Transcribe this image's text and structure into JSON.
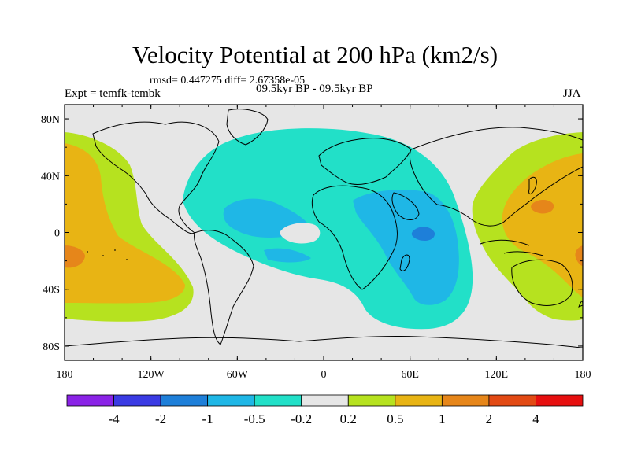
{
  "title": "Velocity Potential at 200 hPa (km2/s)",
  "stats": "rmsd= 0.447275 diff= 2.67358e-05",
  "left_string": "Expt = temfk-tembk",
  "center_string": "09.5kyr BP - 09.5kyr BP",
  "right_string": "JJA",
  "x_ticks": [
    "180",
    "120W",
    "60W",
    "0",
    "60E",
    "120E",
    "180"
  ],
  "y_ticks": [
    "80N",
    "40N",
    "0",
    "40S",
    "80S"
  ],
  "colorbar": {
    "labels": [
      "-4",
      "-2",
      "-1",
      "-0.5",
      "-0.2",
      "0.2",
      "0.5",
      "1",
      "2",
      "4"
    ],
    "colors": [
      "#8a23e6",
      "#3a3be3",
      "#1e7fd9",
      "#1fb7e6",
      "#22e0c8",
      "#e6e6e6",
      "#b6e21f",
      "#e8b414",
      "#e6861a",
      "#e24a14",
      "#e60f0f"
    ]
  },
  "field_colors": {
    "cyan": "#22e0c8",
    "light_blue": "#1fb7e6",
    "blue": "#1e7fd9",
    "neutral": "#e6e6e6",
    "green": "#b6e21f",
    "yellow": "#e8b414",
    "orange": "#e6861a"
  }
}
